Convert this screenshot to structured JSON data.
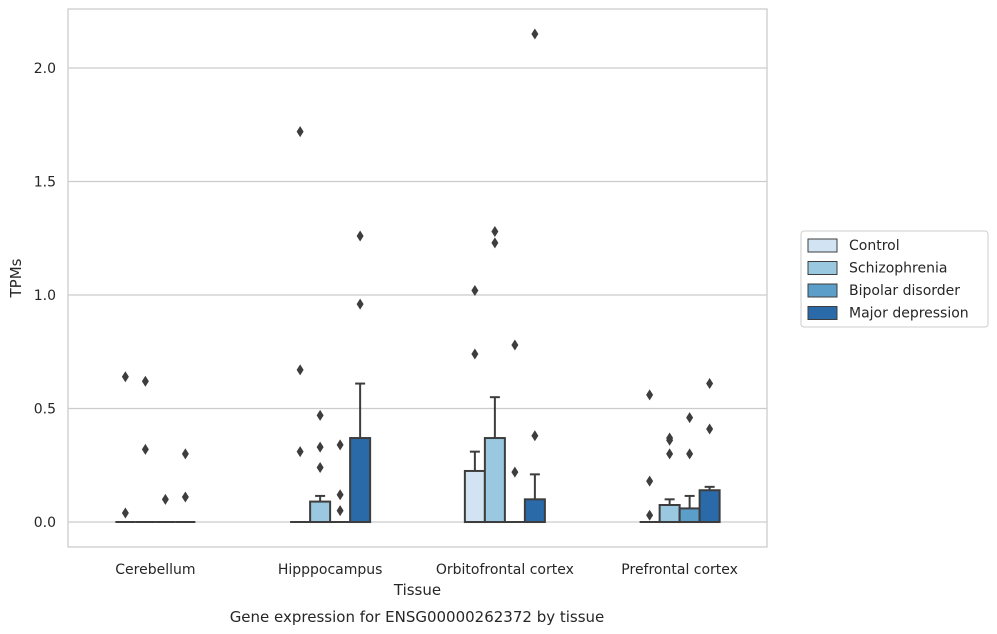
{
  "chart_data": {
    "type": "box",
    "caption": "Gene expression for ENSG00000262372 by tissue",
    "xlabel": "Tissue",
    "ylabel": "TPMs",
    "ylim": [
      -0.11,
      2.26
    ],
    "yticks": [
      0.0,
      0.5,
      1.0,
      1.5,
      2.0
    ],
    "ytick_labels": [
      "0.0",
      "0.5",
      "1.0",
      "1.5",
      "2.0"
    ],
    "grid": "horizontal",
    "legend_position": "right",
    "categories": [
      "Cerebellum",
      "Hipppocampus",
      "Orbitofrontal cortex",
      "Prefrontal cortex"
    ],
    "series": [
      {
        "name": "Control",
        "color": "#d2e3f3",
        "boxes": [
          {
            "q1": 0,
            "median": 0,
            "q3": 0,
            "whisker_low": 0,
            "whisker_high": 0,
            "outliers": [
              0.64,
              0.04
            ]
          },
          {
            "q1": 0,
            "median": 0,
            "q3": 0,
            "whisker_low": 0,
            "whisker_high": 0,
            "outliers": [
              1.72,
              0.67,
              0.31
            ]
          },
          {
            "q1": 0,
            "median": 0,
            "q3": 0.225,
            "whisker_low": 0,
            "whisker_high": 0.31,
            "outliers": [
              1.02,
              0.74
            ]
          },
          {
            "q1": 0,
            "median": 0,
            "q3": 0,
            "whisker_low": 0,
            "whisker_high": 0,
            "outliers": [
              0.56,
              0.18,
              0.03
            ]
          }
        ]
      },
      {
        "name": "Schizophrenia",
        "color": "#9ac8e0",
        "boxes": [
          {
            "q1": 0,
            "median": 0,
            "q3": 0,
            "whisker_low": 0,
            "whisker_high": 0,
            "outliers": [
              0.62,
              0.32
            ]
          },
          {
            "q1": 0,
            "median": 0,
            "q3": 0.09,
            "whisker_low": 0,
            "whisker_high": 0.115,
            "outliers": [
              0.47,
              0.33,
              0.24
            ]
          },
          {
            "q1": 0,
            "median": 0,
            "q3": 0.37,
            "whisker_low": 0,
            "whisker_high": 0.55,
            "outliers": [
              1.28,
              1.23
            ]
          },
          {
            "q1": 0,
            "median": 0,
            "q3": 0.075,
            "whisker_low": 0,
            "whisker_high": 0.1,
            "outliers": [
              0.37,
              0.36,
              0.3
            ]
          }
        ]
      },
      {
        "name": "Bipolar disorder",
        "color": "#5a9ec9",
        "boxes": [
          {
            "q1": 0,
            "median": 0,
            "q3": 0,
            "whisker_low": 0,
            "whisker_high": 0,
            "outliers": [
              0.1
            ]
          },
          {
            "q1": 0,
            "median": 0,
            "q3": 0,
            "whisker_low": 0,
            "whisker_high": 0,
            "outliers": [
              0.34,
              0.12,
              0.05
            ]
          },
          {
            "q1": 0,
            "median": 0,
            "q3": 0,
            "whisker_low": 0,
            "whisker_high": 0,
            "outliers": [
              0.78,
              0.22
            ]
          },
          {
            "q1": 0,
            "median": 0,
            "q3": 0.06,
            "whisker_low": 0,
            "whisker_high": 0.115,
            "outliers": [
              0.46,
              0.3
            ]
          }
        ]
      },
      {
        "name": "Major depression",
        "color": "#2a6aa9",
        "boxes": [
          {
            "q1": 0,
            "median": 0,
            "q3": 0,
            "whisker_low": 0,
            "whisker_high": 0,
            "outliers": [
              0.3,
              0.11
            ]
          },
          {
            "q1": 0,
            "median": 0,
            "q3": 0.37,
            "whisker_low": 0,
            "whisker_high": 0.61,
            "outliers": [
              1.26,
              0.96
            ]
          },
          {
            "q1": 0,
            "median": 0,
            "q3": 0.1,
            "whisker_low": 0,
            "whisker_high": 0.21,
            "outliers": [
              2.15,
              0.38
            ]
          },
          {
            "q1": 0,
            "median": 0,
            "q3": 0.14,
            "whisker_low": 0,
            "whisker_high": 0.155,
            "outliers": [
              0.61,
              0.41
            ]
          }
        ]
      }
    ]
  }
}
